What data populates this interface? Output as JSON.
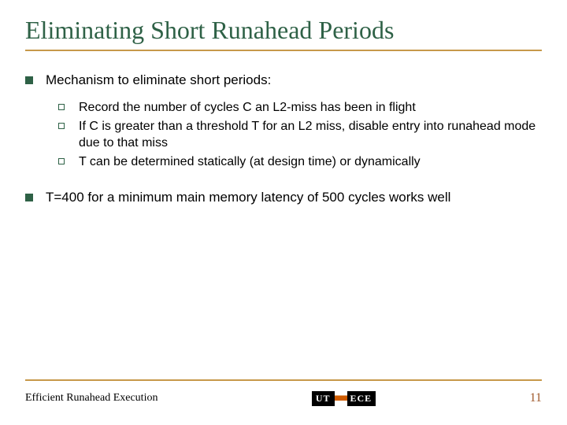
{
  "colors": {
    "title": "#2e6146",
    "rule": "#c7994a",
    "bullet_l1": "#2e6146",
    "bullet_l2_border": "#2e6146",
    "text": "#000000",
    "page_number": "#a05a2c"
  },
  "title": "Eliminating Short Runahead Periods",
  "bullets": [
    {
      "text": "Mechanism to eliminate short periods:",
      "sub": [
        "Record the number of cycles C an L2-miss has been in flight",
        "If C is greater than a threshold T for an L2 miss, disable entry into runahead mode due to that miss",
        "T can be determined statically (at design time) or dynamically"
      ]
    },
    {
      "text": "T=400 for a minimum main memory latency of 500 cycles works well",
      "sub": []
    }
  ],
  "footer": {
    "left": "Efficient Runahead Execution",
    "logo": {
      "left": "UT",
      "right": "ECE"
    },
    "page": "11"
  },
  "style": {
    "title_fontsize": 32,
    "body_fontsize": 17,
    "sub_fontsize": 16,
    "footer_fontsize": 14
  }
}
